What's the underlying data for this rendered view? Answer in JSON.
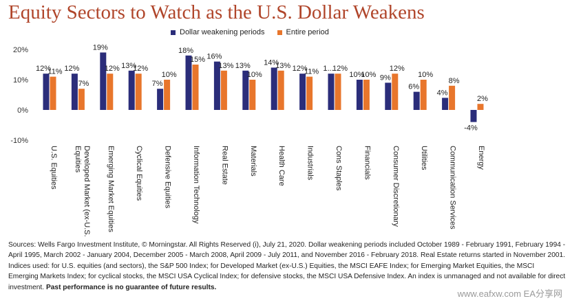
{
  "title": "Equity Sectors to Watch as the U.S. Dollar Weakens",
  "chart_data": {
    "type": "bar",
    "categories": [
      "U.S. Equities",
      "Developed Market (ex-U.S.) Equities",
      "Emerging Market Equities",
      "Cyclical Equities",
      "Defensive Equities",
      "Information Technology",
      "Real Estate",
      "Materials",
      "Health Care",
      "Industrials",
      "Cons Staples",
      "Financials",
      "Consumer Discretionary",
      "Utilities",
      "Communication Services",
      "Energy"
    ],
    "series": [
      {
        "name": "Dollar weakening periods",
        "color": "#2b2d7a",
        "values": [
          12,
          12,
          19,
          13,
          7,
          18,
          16,
          13,
          14,
          12,
          12,
          10,
          9,
          6,
          4,
          -4
        ],
        "labels": [
          "12%",
          "12%",
          "19%",
          "13%",
          "7%",
          "18%",
          "16%",
          "13%",
          "14%",
          "12%",
          "1...",
          "10%",
          "9%",
          "6%",
          "4%",
          "-4%"
        ]
      },
      {
        "name": "Entire period",
        "color": "#e8762c",
        "values": [
          11,
          7,
          12,
          12,
          10,
          15,
          13,
          10,
          13,
          11,
          12,
          10,
          12,
          10,
          8,
          2
        ],
        "labels": [
          "11%",
          "7%",
          "12%",
          "12%",
          "10%",
          "15%",
          "13%",
          "10%",
          "13%",
          "11%",
          "12%",
          "10%",
          "12%",
          "10%",
          "8%",
          "2%"
        ]
      }
    ],
    "yticks": [
      20,
      10,
      0,
      -10
    ],
    "ytick_labels": [
      "20%",
      "10%",
      "0%",
      "-10%"
    ],
    "ylim": [
      -10,
      20
    ],
    "grid": false,
    "legend_position": "top-center"
  },
  "source": {
    "text": "Sources: Wells Fargo Investment Institute, © Morningstar. All Rights Reserved (i), July 21, 2020. Dollar weakening periods included October 1989 - February 1991, February 1994 - April 1995, March 2002 - January 2004, December 2005 - March 2008, April 2009 - July 2011, and November 2016 - February 2018. Real Estate returns started in November 2001. Indices used: for U.S. equities (and sectors), the S&P 500 Index; for Developed Market (ex-U.S.) Equities, the MSCI EAFE Index; for Emerging Market Equities, the MSCI Emerging Markets Index; for cyclical stocks, the MSCI USA Cyclical Index; for defensive stocks, the MSCI USA Defensive Index. An index is unmanaged and not available for direct investment.",
    "disclaimer": "Past performance is no guarantee of future results."
  },
  "watermark": "www.eafxw.com  EA分享网"
}
